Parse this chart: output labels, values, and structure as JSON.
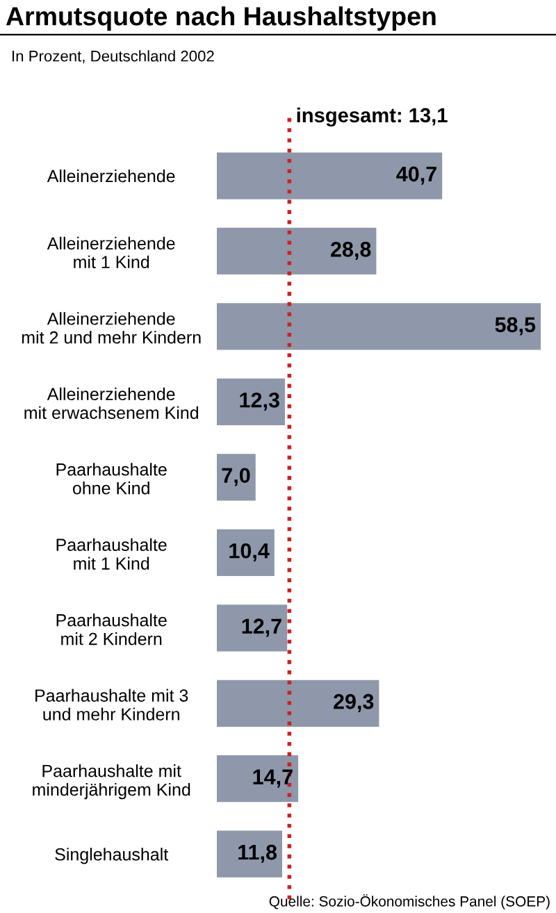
{
  "chart_data": {
    "type": "bar",
    "orientation": "horizontal",
    "title": "Armutsquote nach Haushaltstypen",
    "subtitle": "In Prozent, Deutschland 2002",
    "categories": [
      "Alleinerziehende",
      "Alleinerziehende\nmit 1 Kind",
      "Alleinerziehende\nmit 2 und mehr Kindern",
      "Alleinerziehende\nmit erwachsenem Kind",
      "Paarhaushalte\nohne Kind",
      "Paarhaushalte\nmit 1 Kind",
      "Paarhaushalte\nmit 2 Kindern",
      "Paarhaushalte mit 3\nund mehr Kindern",
      "Paarhaushalte mit\nminderjährigem Kind",
      "Singlehaushalt"
    ],
    "values": [
      40.7,
      28.8,
      58.5,
      12.3,
      7.0,
      10.4,
      12.7,
      29.3,
      14.7,
      11.8
    ],
    "value_labels": [
      "40,7",
      "28,8",
      "58,5",
      "12,3",
      "7,0",
      "10,4",
      "12,7",
      "29,3",
      "14,7",
      "11,8"
    ],
    "color": "#8e98aa",
    "ref_lines": [
      {
        "axis": "x",
        "value": 13.1,
        "label": "insgesamt: 13,1",
        "color": "#cc2222",
        "line_style": "dotted"
      }
    ],
    "annotations": [
      "Quelle: Sozio-Ökonomisches Panel (SOEP)"
    ],
    "grid": false,
    "legend": false
  }
}
